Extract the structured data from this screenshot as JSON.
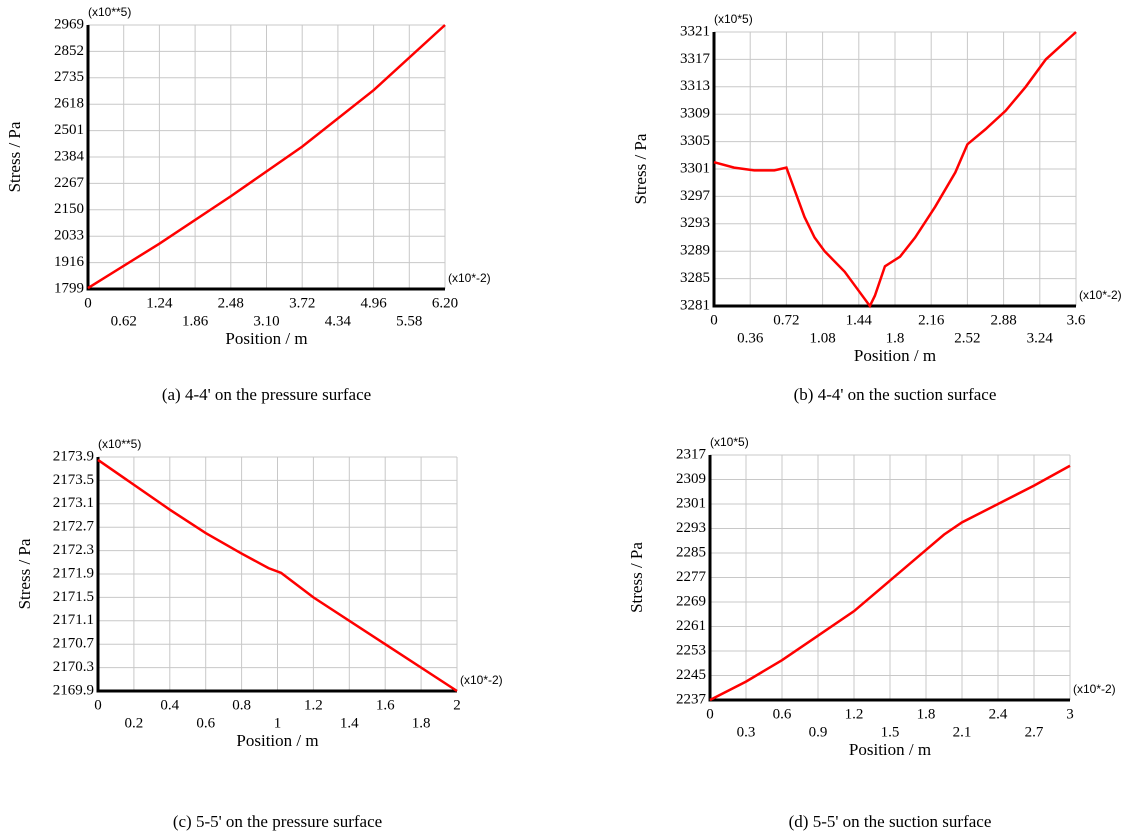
{
  "chart_data": [
    {
      "type": "line",
      "caption": "(a) 4-4' on the pressure surface",
      "x_label": "Position / m",
      "y_label": "Stress / Pa",
      "y_multiplier": "(x10**5)",
      "x_multiplier": "(x10*-2)",
      "color": "#ff0000",
      "grid": true,
      "x": [
        0,
        1.24,
        2.48,
        3.72,
        4.96,
        6.2
      ],
      "values": [
        1803,
        2000,
        2210,
        2430,
        2680,
        2969
      ],
      "xlim": [
        0,
        6.2
      ],
      "ylim": [
        1799,
        2969
      ],
      "xticks": [
        0,
        0.62,
        1.24,
        1.86,
        2.48,
        {
          "value": 3.1,
          "label": "3.10"
        },
        3.72,
        4.34,
        4.96,
        5.58,
        {
          "value": 6.2,
          "label": "6.20"
        }
      ],
      "yticks": [
        1799,
        1916,
        2033,
        2150,
        2267,
        2384,
        2501,
        2618,
        2735,
        2852,
        2969
      ]
    },
    {
      "type": "line",
      "caption": "(b) 4-4' on the suction surface",
      "x_label": "Position / m",
      "y_label": "Stress / Pa",
      "y_multiplier": "(x10*5)",
      "x_multiplier": "(x10*-2)",
      "color": "#ff0000",
      "grid": true,
      "x": [
        0,
        0.2,
        0.4,
        0.6,
        0.72,
        0.8,
        0.9,
        1.0,
        1.1,
        1.3,
        1.44,
        1.55,
        1.6,
        1.7,
        1.85,
        2.0,
        2.2,
        2.4,
        2.52,
        2.7,
        2.9,
        3.1,
        3.3,
        3.6
      ],
      "values": [
        3302,
        3301.2,
        3300.8,
        3300.8,
        3301.2,
        3298,
        3294,
        3291,
        3289,
        3286,
        3283.2,
        3281,
        3282.5,
        3286.8,
        3288.2,
        3291,
        3295.5,
        3300.5,
        3304.6,
        3306.8,
        3309.5,
        3313,
        3317,
        3321
      ],
      "xlim": [
        0,
        3.6
      ],
      "ylim": [
        3281,
        3321
      ],
      "xticks": [
        0,
        0.36,
        0.72,
        1.08,
        1.44,
        1.8,
        2.16,
        2.52,
        2.88,
        3.24,
        3.6
      ],
      "yticks": [
        3281,
        3285,
        3289,
        3293,
        3297,
        3301,
        3305,
        3309,
        3313,
        3317,
        3321
      ]
    },
    {
      "type": "line",
      "caption": "(c) 5-5' on the pressure surface",
      "x_label": "Position / m",
      "y_label": "Stress / Pa",
      "y_multiplier": "(x10**5)",
      "x_multiplier": "(x10*-2)",
      "color": "#ff0000",
      "grid": true,
      "x": [
        0,
        0.4,
        0.6,
        0.8,
        0.95,
        1.02,
        1.2,
        1.6,
        2
      ],
      "values": [
        2173.85,
        2173.0,
        2172.6,
        2172.25,
        2172.0,
        2171.92,
        2171.5,
        2170.7,
        2169.9
      ],
      "xlim": [
        0,
        2
      ],
      "ylim": [
        2169.9,
        2173.9
      ],
      "xticks": [
        0,
        0.2,
        0.4,
        0.6,
        0.8,
        1,
        1.2,
        1.4,
        1.6,
        1.8,
        2
      ],
      "yticks": [
        2169.9,
        2170.3,
        2170.7,
        2171.1,
        2171.5,
        2171.9,
        2172.3,
        2172.7,
        2173.1,
        2173.5,
        2173.9
      ]
    },
    {
      "type": "line",
      "caption": "(d) 5-5' on the suction surface",
      "x_label": "Position / m",
      "y_label": "Stress / Pa",
      "y_multiplier": "(x10*5)",
      "x_multiplier": "(x10*-2)",
      "color": "#ff0000",
      "grid": true,
      "x": [
        0,
        0.3,
        0.6,
        0.9,
        1.2,
        1.5,
        1.8,
        1.95,
        2.1,
        2.4,
        2.7,
        3
      ],
      "values": [
        2237,
        2243,
        2250,
        2258,
        2266,
        2276,
        2286,
        2291,
        2295,
        2301,
        2307,
        2313.5
      ],
      "xlim": [
        0,
        3
      ],
      "ylim": [
        2237,
        2317
      ],
      "xticks": [
        0,
        0.3,
        0.6,
        0.9,
        1.2,
        1.5,
        1.8,
        2.1,
        2.4,
        2.7,
        3
      ],
      "yticks": [
        2237,
        2245,
        2253,
        2261,
        2269,
        2277,
        2285,
        2293,
        2301,
        2309,
        2317
      ]
    }
  ]
}
